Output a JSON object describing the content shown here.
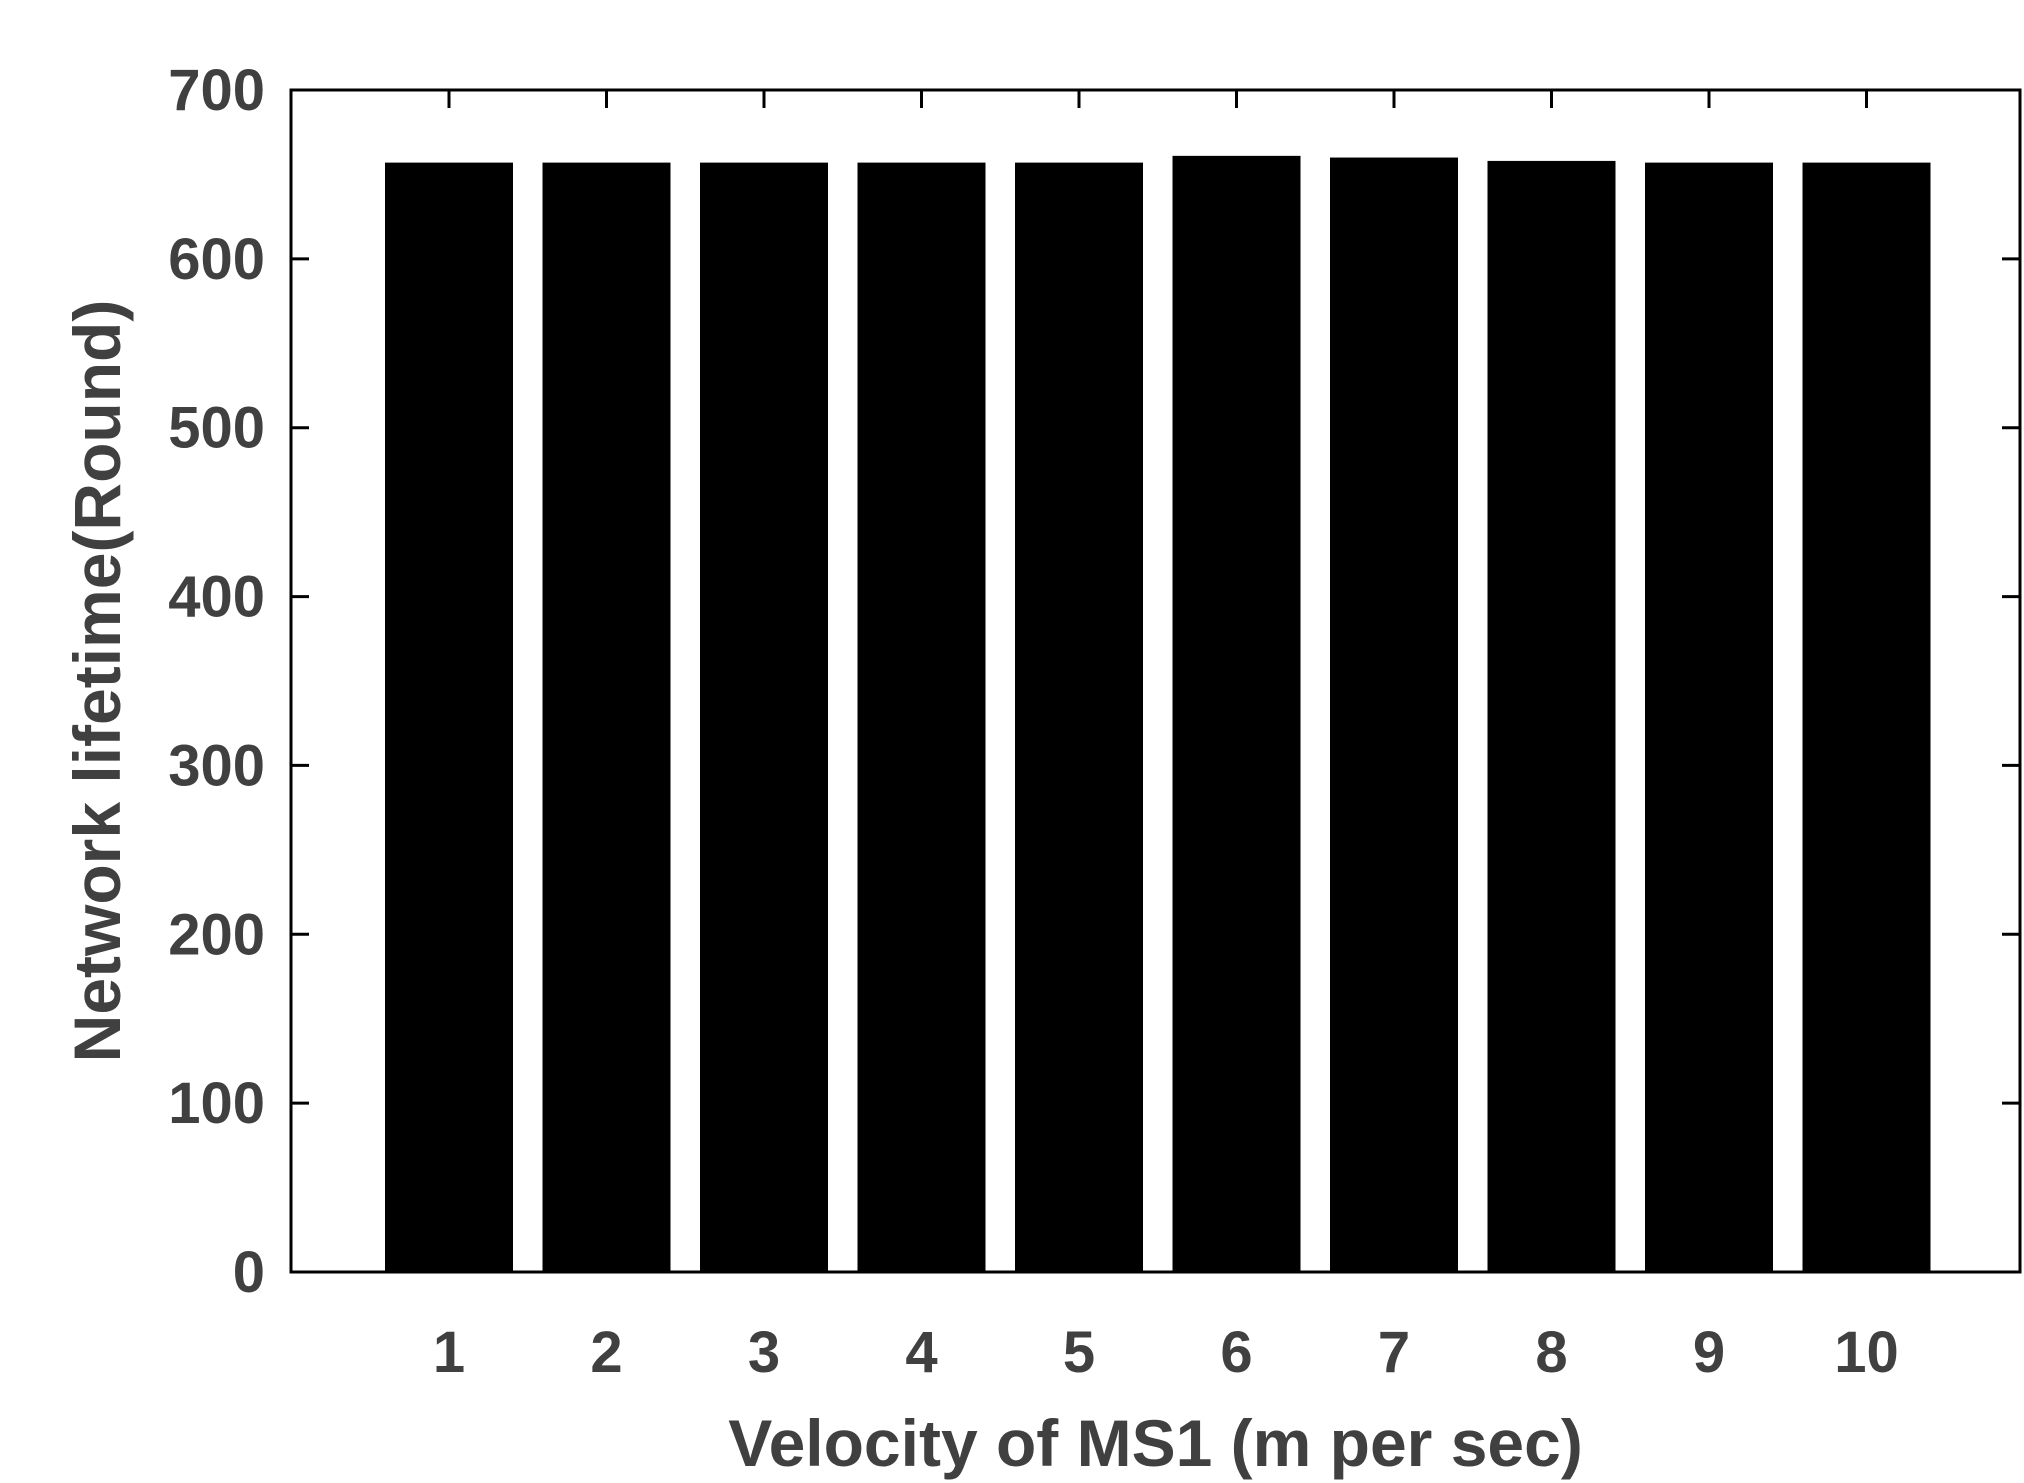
{
  "chart_data": {
    "type": "bar",
    "title": "",
    "xlabel": "Velocity of MS1 (m per sec)",
    "ylabel": "Network lifetime(Round)",
    "categories": [
      "1",
      "2",
      "3",
      "4",
      "5",
      "6",
      "7",
      "8",
      "9",
      "10"
    ],
    "values": [
      657,
      657,
      657,
      657,
      657,
      661,
      660,
      658,
      657,
      657
    ],
    "ylim": [
      0,
      700
    ],
    "yticks": [
      "0",
      "100",
      "200",
      "300",
      "400",
      "500",
      "600",
      "700"
    ],
    "grid": false,
    "legend": "none",
    "colors": {
      "bar": "#000000",
      "axes": "#000000",
      "text": "#404040"
    }
  }
}
